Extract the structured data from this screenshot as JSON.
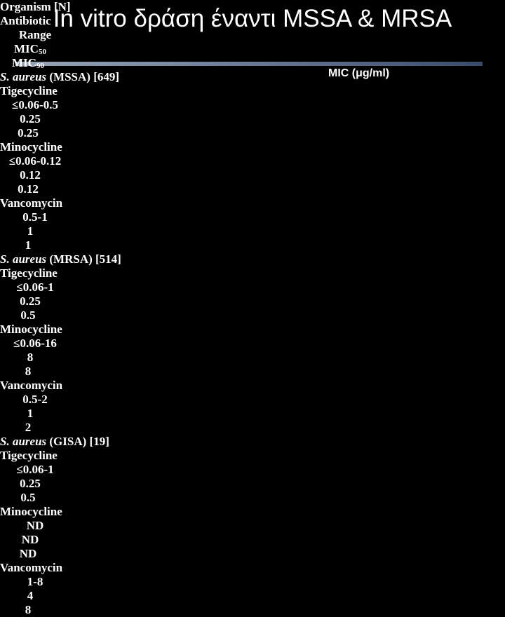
{
  "header": {
    "title": "In vitro δράση έναντι MSSA & MRSA",
    "unit_note": "MIC (μg/ml)"
  },
  "table": {
    "columns": [
      {
        "text": "Organism [N]"
      },
      {
        "text": "Antibiotic"
      },
      {
        "text": "Range"
      },
      {
        "text": "MIC",
        "sub": "50"
      },
      {
        "text": "MIC",
        "sub": "90"
      }
    ],
    "groups": [
      {
        "species": "S. aureus",
        "strain": "(MSSA) [649]",
        "rows": [
          [
            "Tigecycline",
            "≤0.06-0.5",
            "0.25",
            "0.25"
          ],
          [
            "Minocycline",
            "≤0.06-0.12",
            "0.12",
            "0.12"
          ],
          [
            "Vancomycin",
            "0.5-1",
            "1",
            "1"
          ]
        ]
      },
      {
        "species": "S. aureus",
        "strain": "(MRSA) [514]",
        "rows": [
          [
            "Tigecycline",
            "≤0.06-1",
            "0.25",
            "0.5"
          ],
          [
            "Minocycline",
            "≤0.06-16",
            "8",
            "8"
          ],
          [
            "Vancomycin",
            "0.5-2",
            "1",
            "2"
          ]
        ]
      },
      {
        "species": "S. aureus",
        "strain": "(GISA) [19]",
        "rows": [
          [
            "Tigecycline",
            "≤0.06-1",
            "0.25",
            "0.5"
          ],
          [
            "Minocycline",
            "ND",
            "ND",
            "ND"
          ],
          [
            "Vancomycin",
            "1-8",
            "4",
            "8"
          ]
        ]
      }
    ]
  }
}
